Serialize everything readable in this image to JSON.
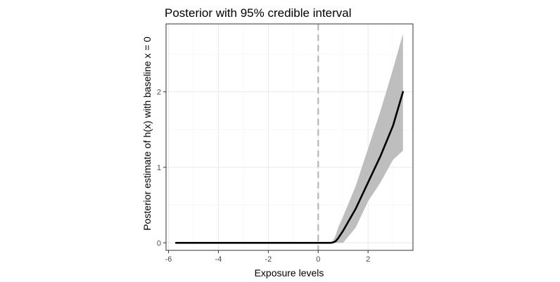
{
  "chart_data": {
    "type": "line",
    "title": "Posterior with 95% credible interval",
    "xlabel": "Exposure levels",
    "ylabel": "Posterior estimate of h(x) with baseline x = 0",
    "xlim": [
      -6.1,
      3.8
    ],
    "ylim": [
      -0.1,
      2.9
    ],
    "x_ticks": [
      -6,
      -4,
      -2,
      0,
      2
    ],
    "y_ticks": [
      0,
      1,
      2
    ],
    "reference_line_x": 0,
    "grid": true,
    "series": [
      {
        "x": [
          -5.7,
          -2,
          0,
          0.5,
          0.6,
          0.7,
          0.8,
          1.0,
          1.5,
          2.0,
          2.5,
          3.0,
          3.4
        ],
        "estimate": [
          0,
          0,
          0,
          0,
          0.005,
          0.02,
          0.06,
          0.16,
          0.45,
          0.8,
          1.15,
          1.55,
          2.0
        ],
        "lower": [
          0,
          0,
          0,
          0,
          0,
          0,
          0,
          0,
          0.2,
          0.55,
          0.8,
          1.1,
          1.22
        ],
        "upper": [
          0,
          0,
          0,
          0,
          0.03,
          0.1,
          0.2,
          0.35,
          0.75,
          1.25,
          1.75,
          2.3,
          2.77
        ]
      }
    ]
  },
  "colors": {
    "line": "#000000",
    "band": "#bebebe",
    "reference_line": "#bdbdbd",
    "grid_major": "#ebebeb",
    "grid_minor": "#f5f5f5",
    "panel_border": "#333333"
  }
}
